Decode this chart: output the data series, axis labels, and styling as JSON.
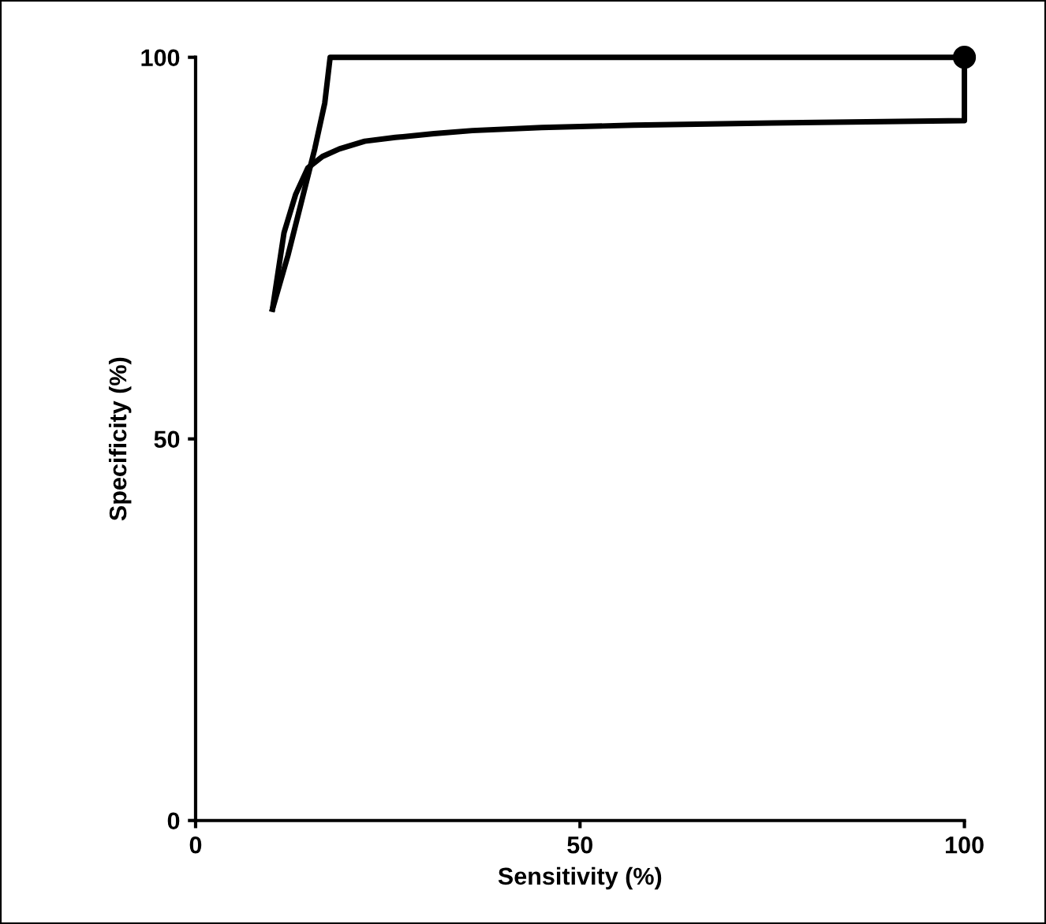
{
  "chart_data": {
    "type": "line",
    "xlabel": "Sensitivity (%)",
    "ylabel": "Specificity (%)",
    "xlim": [
      0,
      100
    ],
    "ylim": [
      0,
      100
    ],
    "xticks": [
      0,
      50,
      100
    ],
    "yticks": [
      0,
      50,
      100
    ],
    "grid": false,
    "marker": "none",
    "line_style": "solid",
    "series": [
      {
        "color": "#000000",
        "x": [
          10,
          12,
          14,
          15.5,
          16.8,
          17.5,
          100
        ],
        "values": [
          67,
          74,
          82,
          88,
          94,
          100,
          100
        ]
      },
      {
        "color": "#000000",
        "x": [
          10,
          11.5,
          13,
          14.6,
          16.5,
          18.7,
          22,
          26,
          31,
          36,
          45,
          57,
          75,
          100,
          100
        ],
        "values": [
          67,
          77,
          82,
          85.5,
          87,
          88,
          89,
          89.5,
          90,
          90.4,
          90.8,
          91.1,
          91.4,
          91.7,
          100
        ]
      },
      {
        "type": "scatter",
        "color": "#000000",
        "marker": "circle",
        "x": [
          100
        ],
        "values": [
          100
        ]
      }
    ]
  }
}
